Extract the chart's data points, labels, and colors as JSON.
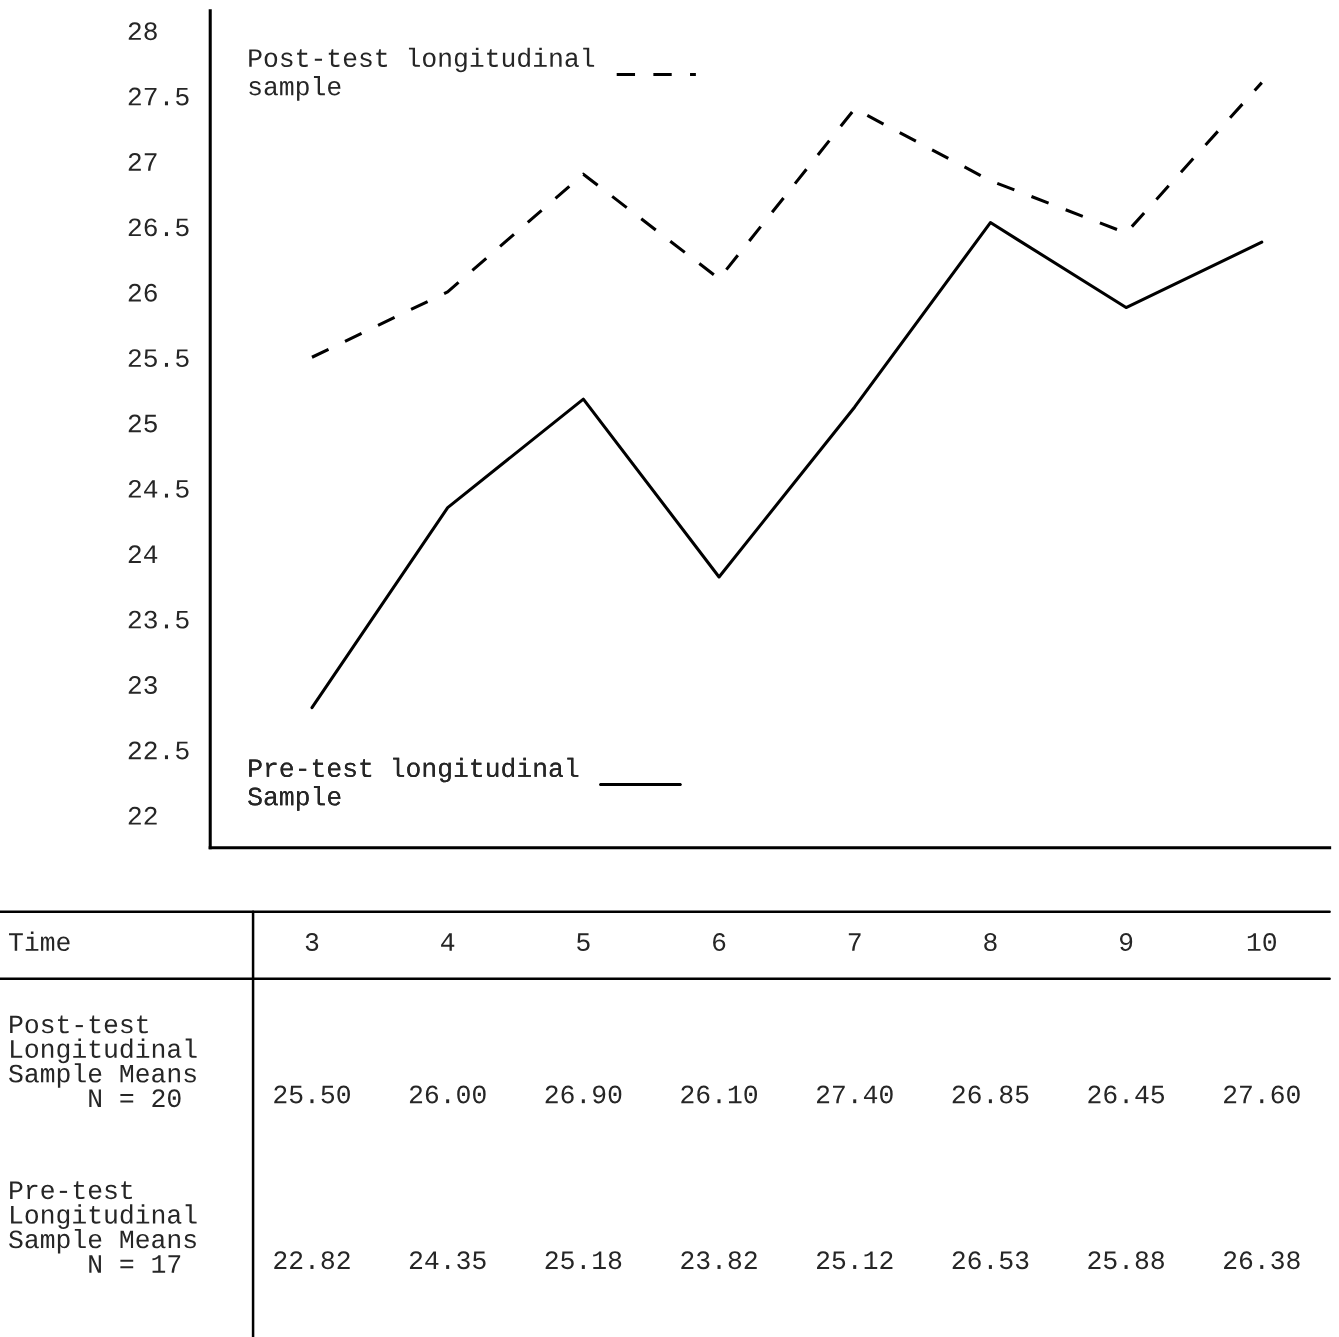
{
  "chart_data": {
    "type": "line",
    "categories": [
      "3",
      "4",
      "5",
      "6",
      "7",
      "8",
      "9",
      "10"
    ],
    "xlabel": "Time",
    "ylim": [
      21.75,
      28.15
    ],
    "yticks": [
      22,
      22.5,
      23,
      23.5,
      24,
      24.5,
      25,
      25.5,
      26,
      26.5,
      27,
      27.5,
      28
    ],
    "series": [
      {
        "name": "Post-test longitudinal\nsample",
        "color": "#000000",
        "line_style": "dashed",
        "values": [
          25.5,
          26.0,
          26.9,
          26.1,
          27.4,
          26.85,
          26.45,
          27.6
        ],
        "value_labels": [
          "25.50",
          "26.00",
          "26.90",
          "26.10",
          "27.40",
          "26.85",
          "26.45",
          "27.60"
        ]
      },
      {
        "name": "Pre-test longitudinal\nSample",
        "color": "#000000",
        "line_style": "solid",
        "values": [
          22.82,
          24.35,
          25.18,
          23.82,
          25.12,
          26.53,
          25.88,
          26.38
        ],
        "value_labels": [
          "22.82",
          "24.35",
          "25.18",
          "23.82",
          "25.12",
          "26.53",
          "25.88",
          "26.38"
        ]
      }
    ],
    "annotations": [
      "Post-test\nLongitudinal\nSample Means\n     N = 20",
      "Pre-test\nLongitudinal\nSample Means\n     N = 17"
    ],
    "legend": "left",
    "grid": false,
    "marker": "none"
  }
}
